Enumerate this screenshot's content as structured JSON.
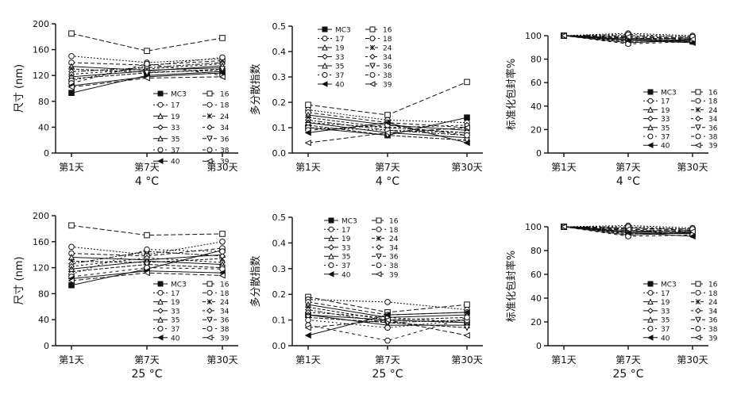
{
  "figure": {
    "series_names": [
      "MC3",
      "16",
      "17",
      "18",
      "19",
      "24",
      "33",
      "34",
      "35",
      "36",
      "37",
      "38",
      "40",
      "39"
    ]
  },
  "chart_data": [
    {
      "type": "line",
      "xlabel": "4 °C",
      "ylabel": "尺寸 (nm)",
      "categories": [
        "第1天",
        "第7天",
        "第30天"
      ],
      "ylim": [
        0,
        200
      ],
      "yticks": [
        0,
        40,
        80,
        120,
        160,
        200
      ],
      "series": [
        {
          "name": "MC3",
          "values": [
            93,
            120,
            126
          ]
        },
        {
          "name": "16",
          "values": [
            185,
            158,
            178
          ]
        },
        {
          "name": "17",
          "values": [
            150,
            140,
            146
          ]
        },
        {
          "name": "18",
          "values": [
            140,
            136,
            143
          ]
        },
        {
          "name": "19",
          "values": [
            134,
            128,
            132
          ]
        },
        {
          "name": "24",
          "values": [
            130,
            125,
            128
          ]
        },
        {
          "name": "33",
          "values": [
            126,
            132,
            140
          ]
        },
        {
          "name": "34",
          "values": [
            122,
            130,
            138
          ]
        },
        {
          "name": "35",
          "values": [
            118,
            127,
            135
          ]
        },
        {
          "name": "36",
          "values": [
            115,
            124,
            130
          ]
        },
        {
          "name": "37",
          "values": [
            112,
            135,
            148
          ]
        },
        {
          "name": "38",
          "values": [
            108,
            138,
            120
          ]
        },
        {
          "name": "40",
          "values": [
            104,
            118,
            124
          ]
        },
        {
          "name": "39",
          "values": [
            102,
            116,
            118
          ]
        }
      ]
    },
    {
      "type": "line",
      "xlabel": "4 °C",
      "ylabel": "多分散指数",
      "categories": [
        "第1天",
        "第7天",
        "第30天"
      ],
      "ylim": [
        0,
        0.5
      ],
      "yticks": [
        0.0,
        0.1,
        0.2,
        0.3,
        0.4,
        0.5
      ],
      "series": [
        {
          "name": "MC3",
          "values": [
            0.1,
            0.07,
            0.14
          ]
        },
        {
          "name": "16",
          "values": [
            0.19,
            0.15,
            0.28
          ]
        },
        {
          "name": "17",
          "values": [
            0.17,
            0.13,
            0.12
          ]
        },
        {
          "name": "18",
          "values": [
            0.16,
            0.12,
            0.1
          ]
        },
        {
          "name": "19",
          "values": [
            0.15,
            0.11,
            0.09
          ]
        },
        {
          "name": "24",
          "values": [
            0.14,
            0.1,
            0.08
          ]
        },
        {
          "name": "33",
          "values": [
            0.13,
            0.09,
            0.07
          ]
        },
        {
          "name": "34",
          "values": [
            0.12,
            0.1,
            0.11
          ]
        },
        {
          "name": "35",
          "values": [
            0.12,
            0.08,
            0.06
          ]
        },
        {
          "name": "36",
          "values": [
            0.11,
            0.07,
            0.05
          ]
        },
        {
          "name": "37",
          "values": [
            0.1,
            0.09,
            0.08
          ]
        },
        {
          "name": "38",
          "values": [
            0.09,
            0.11,
            0.07
          ]
        },
        {
          "name": "40",
          "values": [
            0.08,
            0.12,
            0.04
          ]
        },
        {
          "name": "39",
          "values": [
            0.04,
            0.08,
            0.1
          ]
        }
      ]
    },
    {
      "type": "line",
      "xlabel": "4 °C",
      "ylabel": "标准化包封率%",
      "categories": [
        "第1天",
        "第7天",
        "第30天"
      ],
      "ylim": [
        0,
        100
      ],
      "yticks": [
        0,
        20,
        40,
        60,
        80,
        100
      ],
      "series": [
        {
          "name": "MC3",
          "values": [
            100,
            97,
            96
          ]
        },
        {
          "name": "16",
          "values": [
            100,
            99,
            98
          ]
        },
        {
          "name": "17",
          "values": [
            100,
            102,
            100
          ]
        },
        {
          "name": "18",
          "values": [
            100,
            98,
            97
          ]
        },
        {
          "name": "19",
          "values": [
            100,
            96,
            95
          ]
        },
        {
          "name": "24",
          "values": [
            100,
            95,
            97
          ]
        },
        {
          "name": "33",
          "values": [
            100,
            100,
            99
          ]
        },
        {
          "name": "34",
          "values": [
            100,
            97,
            98
          ]
        },
        {
          "name": "35",
          "values": [
            100,
            94,
            96
          ]
        },
        {
          "name": "36",
          "values": [
            100,
            98,
            95
          ]
        },
        {
          "name": "37",
          "values": [
            100,
            101,
            99
          ]
        },
        {
          "name": "38",
          "values": [
            100,
            93,
            95
          ]
        },
        {
          "name": "40",
          "values": [
            100,
            96,
            94
          ]
        },
        {
          "name": "39",
          "values": [
            100,
            99,
            97
          ]
        }
      ]
    },
    {
      "type": "line",
      "xlabel": "25 °C",
      "ylabel": "尺寸 (nm)",
      "categories": [
        "第1天",
        "第7天",
        "第30天"
      ],
      "ylim": [
        0,
        200
      ],
      "yticks": [
        0,
        40,
        80,
        120,
        160,
        200
      ],
      "series": [
        {
          "name": "MC3",
          "values": [
            93,
            118,
            147
          ]
        },
        {
          "name": "16",
          "values": [
            185,
            170,
            172
          ]
        },
        {
          "name": "17",
          "values": [
            152,
            140,
            160
          ]
        },
        {
          "name": "18",
          "values": [
            142,
            138,
            150
          ]
        },
        {
          "name": "19",
          "values": [
            136,
            132,
            140
          ]
        },
        {
          "name": "24",
          "values": [
            130,
            128,
            134
          ]
        },
        {
          "name": "33",
          "values": [
            126,
            145,
            138
          ]
        },
        {
          "name": "34",
          "values": [
            122,
            135,
            128
          ]
        },
        {
          "name": "35",
          "values": [
            118,
            130,
            125
          ]
        },
        {
          "name": "36",
          "values": [
            114,
            125,
            120
          ]
        },
        {
          "name": "37",
          "values": [
            110,
            148,
            145
          ]
        },
        {
          "name": "38",
          "values": [
            106,
            120,
            118
          ]
        },
        {
          "name": "40",
          "values": [
            103,
            115,
            112
          ]
        },
        {
          "name": "39",
          "values": [
            100,
            112,
            108
          ]
        }
      ]
    },
    {
      "type": "line",
      "xlabel": "25 °C",
      "ylabel": "多分散指数",
      "categories": [
        "第1天",
        "第7天",
        "第30天"
      ],
      "ylim": [
        0,
        0.5
      ],
      "yticks": [
        0.0,
        0.1,
        0.2,
        0.3,
        0.4,
        0.5
      ],
      "series": [
        {
          "name": "MC3",
          "values": [
            0.12,
            0.1,
            0.09
          ]
        },
        {
          "name": "16",
          "values": [
            0.19,
            0.13,
            0.16
          ]
        },
        {
          "name": "17",
          "values": [
            0.18,
            0.17,
            0.14
          ]
        },
        {
          "name": "18",
          "values": [
            0.17,
            0.12,
            0.13
          ]
        },
        {
          "name": "19",
          "values": [
            0.16,
            0.11,
            0.12
          ]
        },
        {
          "name": "24",
          "values": [
            0.15,
            0.1,
            0.11
          ]
        },
        {
          "name": "33",
          "values": [
            0.14,
            0.09,
            0.1
          ]
        },
        {
          "name": "34",
          "values": [
            0.13,
            0.11,
            0.09
          ]
        },
        {
          "name": "35",
          "values": [
            0.12,
            0.08,
            0.08
          ]
        },
        {
          "name": "36",
          "values": [
            0.11,
            0.09,
            0.07
          ]
        },
        {
          "name": "37",
          "values": [
            0.1,
            0.07,
            0.1
          ]
        },
        {
          "name": "38",
          "values": [
            0.08,
            0.02,
            0.11
          ]
        },
        {
          "name": "40",
          "values": [
            0.04,
            0.12,
            0.13
          ]
        },
        {
          "name": "39",
          "values": [
            0.07,
            0.1,
            0.04
          ]
        }
      ]
    },
    {
      "type": "line",
      "xlabel": "25 °C",
      "ylabel": "标准化包封率%",
      "categories": [
        "第1天",
        "第7天",
        "第30天"
      ],
      "ylim": [
        0,
        100
      ],
      "yticks": [
        0,
        20,
        40,
        60,
        80,
        100
      ],
      "series": [
        {
          "name": "MC3",
          "values": [
            100,
            96,
            95
          ]
        },
        {
          "name": "16",
          "values": [
            100,
            99,
            97
          ]
        },
        {
          "name": "17",
          "values": [
            100,
            101,
            99
          ]
        },
        {
          "name": "18",
          "values": [
            100,
            97,
            96
          ]
        },
        {
          "name": "19",
          "values": [
            100,
            95,
            94
          ]
        },
        {
          "name": "24",
          "values": [
            100,
            94,
            96
          ]
        },
        {
          "name": "33",
          "values": [
            100,
            99,
            98
          ]
        },
        {
          "name": "34",
          "values": [
            100,
            96,
            97
          ]
        },
        {
          "name": "35",
          "values": [
            100,
            93,
            95
          ]
        },
        {
          "name": "36",
          "values": [
            100,
            97,
            94
          ]
        },
        {
          "name": "37",
          "values": [
            100,
            100,
            98
          ]
        },
        {
          "name": "38",
          "values": [
            100,
            92,
            93
          ]
        },
        {
          "name": "40",
          "values": [
            100,
            95,
            92
          ]
        },
        {
          "name": "39",
          "values": [
            100,
            98,
            96
          ]
        }
      ]
    }
  ]
}
